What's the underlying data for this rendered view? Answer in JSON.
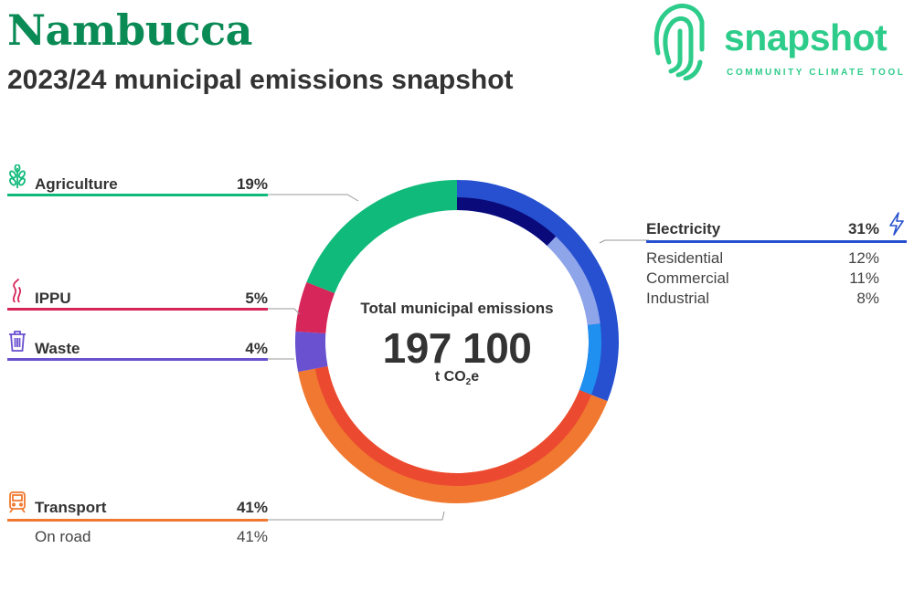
{
  "header": {
    "title": "Nambucca",
    "subtitle": "2023/24 municipal emissions snapshot"
  },
  "logo": {
    "word": "snapshot",
    "tagline": "COMMUNITY CLIMATE TOOL",
    "color": "#2ecc8a"
  },
  "center": {
    "label": "Total municipal emissions",
    "value": "197 100",
    "unit_prefix": "t CO",
    "unit_sub": "2",
    "unit_suffix": "e"
  },
  "sectors": {
    "agriculture": {
      "name": "Agriculture",
      "pct": "19%",
      "color": "#0fba7a",
      "icon": "wheat-icon"
    },
    "ippu": {
      "name": "IPPU",
      "pct": "5%",
      "color": "#d6265a",
      "icon": "smoke-icon"
    },
    "waste": {
      "name": "Waste",
      "pct": "4%",
      "color": "#6a51cf",
      "icon": "trash-bin-icon"
    },
    "transport": {
      "name": "Transport",
      "pct": "41%",
      "color": "#f07830",
      "icon": "train-icon",
      "subs": [
        {
          "name": "On road",
          "pct": "41%"
        }
      ]
    },
    "electricity": {
      "name": "Electricity",
      "pct": "31%",
      "color": "#2650cf",
      "icon": "lightning-icon",
      "subs": [
        {
          "name": "Residential",
          "pct": "12%"
        },
        {
          "name": "Commercial",
          "pct": "11%"
        },
        {
          "name": "Industrial",
          "pct": "8%"
        }
      ]
    }
  },
  "chart_data": {
    "type": "pie",
    "title": "Total municipal emissions",
    "total": 197100,
    "unit": "t CO2e",
    "slices": [
      {
        "name": "Electricity",
        "value": 31,
        "color": "#2650cf",
        "subs": [
          {
            "name": "Residential",
            "value": 12,
            "color": "#0a0a7a"
          },
          {
            "name": "Commercial",
            "value": 11,
            "color": "#8fa5ea"
          },
          {
            "name": "Industrial",
            "value": 8,
            "color": "#1f8ff0"
          }
        ]
      },
      {
        "name": "Transport",
        "value": 41,
        "color": "#f07830",
        "subs": [
          {
            "name": "On road",
            "value": 41,
            "color": "#ec4a30"
          }
        ]
      },
      {
        "name": "Waste",
        "value": 4,
        "color": "#6a51cf",
        "subs": []
      },
      {
        "name": "IPPU",
        "value": 5,
        "color": "#d6265a",
        "subs": []
      },
      {
        "name": "Agriculture",
        "value": 19,
        "color": "#0fba7a",
        "subs": []
      }
    ]
  }
}
